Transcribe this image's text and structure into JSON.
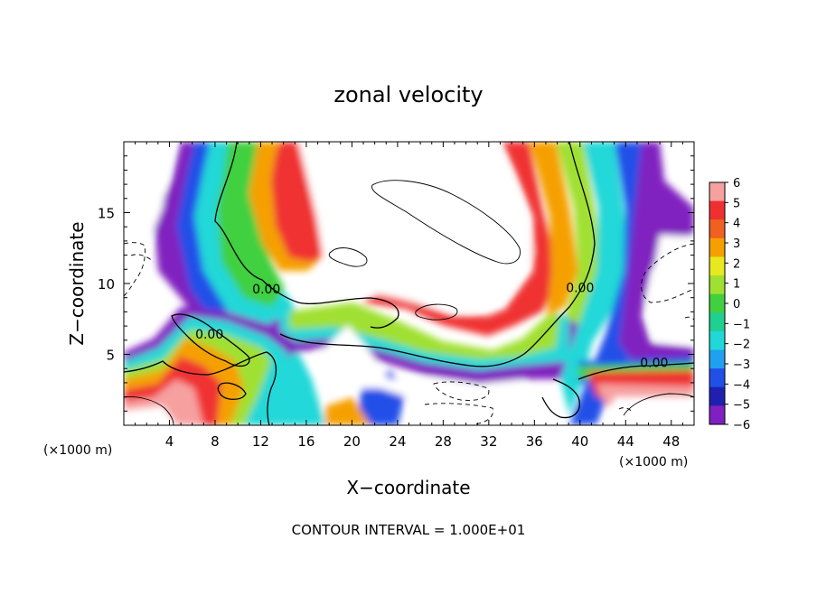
{
  "chart_data": {
    "type": "heatmap",
    "title": "zonal velocity",
    "xlabel": "X−coordinate",
    "ylabel": "Z−coordinate",
    "x_unit_left": "(×1000 m)",
    "x_unit_right": "(×1000 m)",
    "footer": "CONTOUR INTERVAL = 1.000E+01",
    "xlim": [
      0,
      50
    ],
    "ylim": [
      0,
      20
    ],
    "x_ticks": [
      4,
      8,
      12,
      16,
      20,
      24,
      28,
      32,
      36,
      40,
      44,
      48
    ],
    "x_tick_labels": [
      "4",
      "8",
      "12",
      "16",
      "20",
      "24",
      "28",
      "32",
      "36",
      "40",
      "44",
      "48"
    ],
    "y_ticks": [
      5,
      10,
      15
    ],
    "y_tick_labels": [
      "5",
      "10",
      "15"
    ],
    "colorbar": {
      "levels": [
        6,
        5,
        4,
        3,
        2,
        1,
        0,
        -1,
        -2,
        -3,
        -4,
        -5,
        -6
      ],
      "labels": [
        "6",
        "5",
        "4",
        "3",
        "2",
        "1",
        "0",
        "−1",
        "−2",
        "−3",
        "−4",
        "−5",
        "−6"
      ],
      "colors": [
        "#f7a0a0",
        "#f03030",
        "#f06020",
        "#f5a000",
        "#e8e820",
        "#a0e030",
        "#40d040",
        "#20d090",
        "#20d8d8",
        "#20a0f0",
        "#2050e8",
        "#2020b0",
        "#8020c0"
      ]
    },
    "contour_labels": [
      {
        "text": "0.00",
        "x": 12.5,
        "z": 9.3
      },
      {
        "text": "0.00",
        "x": 7.5,
        "z": 6.1
      },
      {
        "text": "0.00",
        "x": 40.0,
        "z": 9.4
      },
      {
        "text": "0.00",
        "x": 46.5,
        "z": 4.1
      }
    ]
  }
}
